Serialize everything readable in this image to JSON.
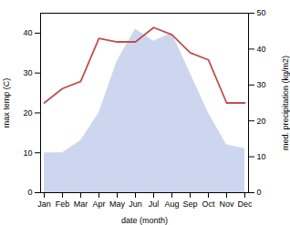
{
  "chart_data": {
    "type": "area",
    "xlabel": "date (month)",
    "ylabel": "max temp (C)",
    "y2label": "med. precipitation (kg/m2)",
    "categories": [
      "Jan",
      "Feb",
      "Mar",
      "Apr",
      "May",
      "Jun",
      "Jul",
      "Aug",
      "Sep",
      "Oct",
      "Nov",
      "Dec"
    ],
    "series": [
      {
        "type": "area",
        "color": "#b8c4e8",
        "values": [
          10,
          10,
          13,
          20,
          33,
          41,
          38,
          40,
          30,
          20,
          12,
          11
        ]
      },
      {
        "type": "line",
        "color": "#c0504d",
        "axis": "y2",
        "values": [
          25,
          29,
          31,
          43,
          42,
          42,
          46,
          44,
          39,
          37,
          25,
          25
        ]
      }
    ],
    "ylim": [
      0,
      45
    ],
    "yticks": [
      0,
      10,
      20,
      30,
      40
    ],
    "y2lim": [
      0,
      50
    ],
    "y2ticks": [
      0,
      10,
      20,
      30,
      40,
      50
    ],
    "grid": false
  }
}
